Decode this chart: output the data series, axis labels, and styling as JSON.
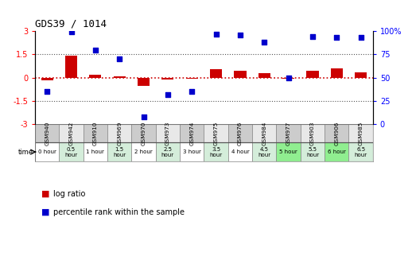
{
  "title": "GDS39 / 1014",
  "samples": [
    "GSM940",
    "GSM942",
    "GSM910",
    "GSM969",
    "GSM970",
    "GSM973",
    "GSM974",
    "GSM975",
    "GSM976",
    "GSM984",
    "GSM977",
    "GSM903",
    "GSM906",
    "GSM985"
  ],
  "time_labels": [
    "0 hour",
    "0.5\nhour",
    "1 hour",
    "1.5\nhour",
    "2 hour",
    "2.5\nhour",
    "3 hour",
    "3.5\nhour",
    "4 hour",
    "4.5\nhour",
    "5 hour",
    "5.5\nhour",
    "6 hour",
    "6.5\nhour"
  ],
  "time_colors": [
    "#ffffff",
    "#d4edda",
    "#ffffff",
    "#d4edda",
    "#ffffff",
    "#d4edda",
    "#ffffff",
    "#d4edda",
    "#ffffff",
    "#d4edda",
    "#90ee90",
    "#d4edda",
    "#90ee90",
    "#d4edda"
  ],
  "log_ratio": [
    -0.15,
    1.4,
    0.2,
    0.1,
    -0.55,
    -0.12,
    -0.08,
    0.55,
    0.45,
    0.3,
    -0.05,
    0.45,
    0.6,
    0.35
  ],
  "percentile": [
    35,
    99,
    80,
    70,
    8,
    32,
    35,
    97,
    96,
    88,
    50,
    94,
    93,
    93
  ],
  "ylim_left": [
    -3,
    3
  ],
  "ylim_right": [
    0,
    100
  ],
  "yticks_left": [
    -3,
    -1.5,
    0,
    1.5,
    3
  ],
  "yticks_right": [
    0,
    25,
    50,
    75,
    100
  ],
  "ytick_labels_left": [
    "-3",
    "-1.5",
    "0",
    "1.5",
    "3"
  ],
  "ytick_labels_right": [
    "0",
    "25",
    "50",
    "75",
    "100%"
  ],
  "bar_color": "#cc0000",
  "scatter_color": "#0000cc",
  "zero_line_color": "#cc0000",
  "dot_line_color": "#555555",
  "bg_color": "#ffffff",
  "plot_bg": "#ffffff",
  "sample_cell_odd": "#cccccc",
  "sample_cell_even": "#e8e8e8"
}
